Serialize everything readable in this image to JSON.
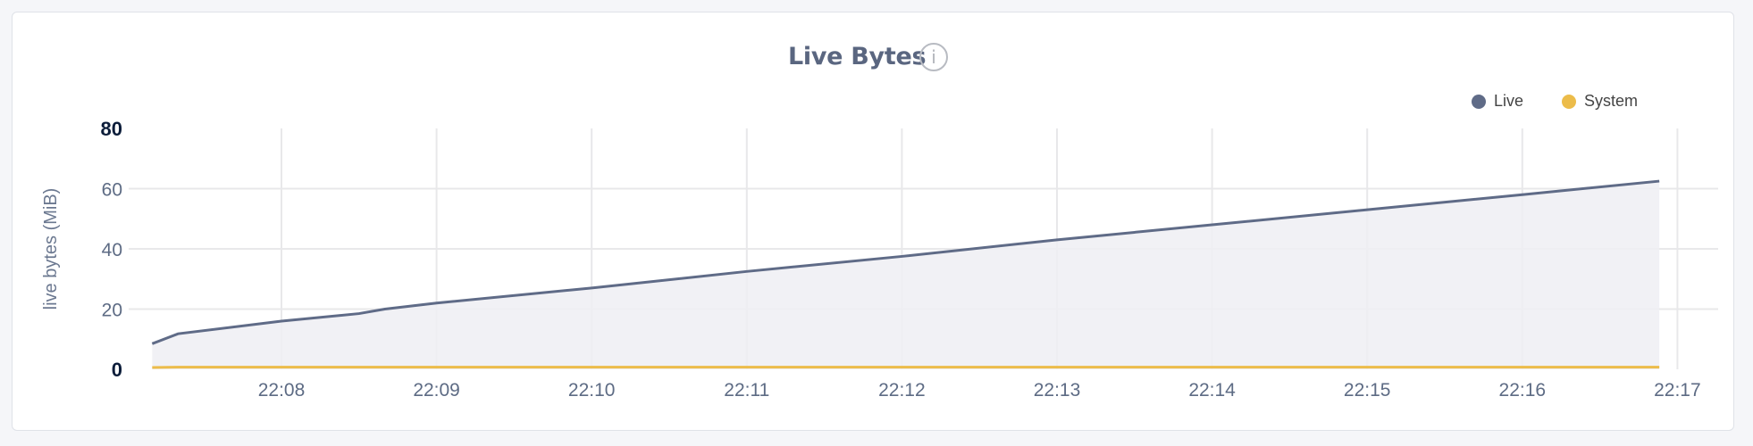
{
  "chart_data": {
    "type": "area",
    "title": "Live Bytes",
    "info_icon": "info-circle-icon",
    "ylabel": "live bytes (MiB)",
    "xlabel": "",
    "ylim": [
      0,
      80
    ],
    "yticks": [
      "0",
      "20",
      "40",
      "60",
      "80"
    ],
    "xticks": [
      "22:08",
      "22:09",
      "22:10",
      "22:11",
      "22:12",
      "22:13",
      "22:14",
      "22:15",
      "22:16",
      "22:17"
    ],
    "xlim": [
      "22:07:10",
      "22:17:00"
    ],
    "grid": true,
    "legend_position": "top-right",
    "x": [
      "22:07:10",
      "22:07:20",
      "22:08:00",
      "22:08:30",
      "22:08:40",
      "22:09:00",
      "22:10:00",
      "22:11:00",
      "22:12:00",
      "22:13:00",
      "22:14:00",
      "22:15:00",
      "22:16:00",
      "22:16:53"
    ],
    "series": [
      {
        "name": "Live",
        "color": "#5f6b87",
        "fill": "#eeeff3",
        "values": [
          8.5,
          11.8,
          16,
          18.5,
          20,
          22,
          27,
          32.5,
          37.5,
          43,
          48,
          53,
          58,
          62.5
        ]
      },
      {
        "name": "System",
        "color": "#ecbc4a",
        "values": [
          0.6,
          0.7,
          0.7,
          0.7,
          0.7,
          0.7,
          0.7,
          0.7,
          0.7,
          0.7,
          0.7,
          0.7,
          0.7,
          0.7
        ]
      }
    ]
  }
}
